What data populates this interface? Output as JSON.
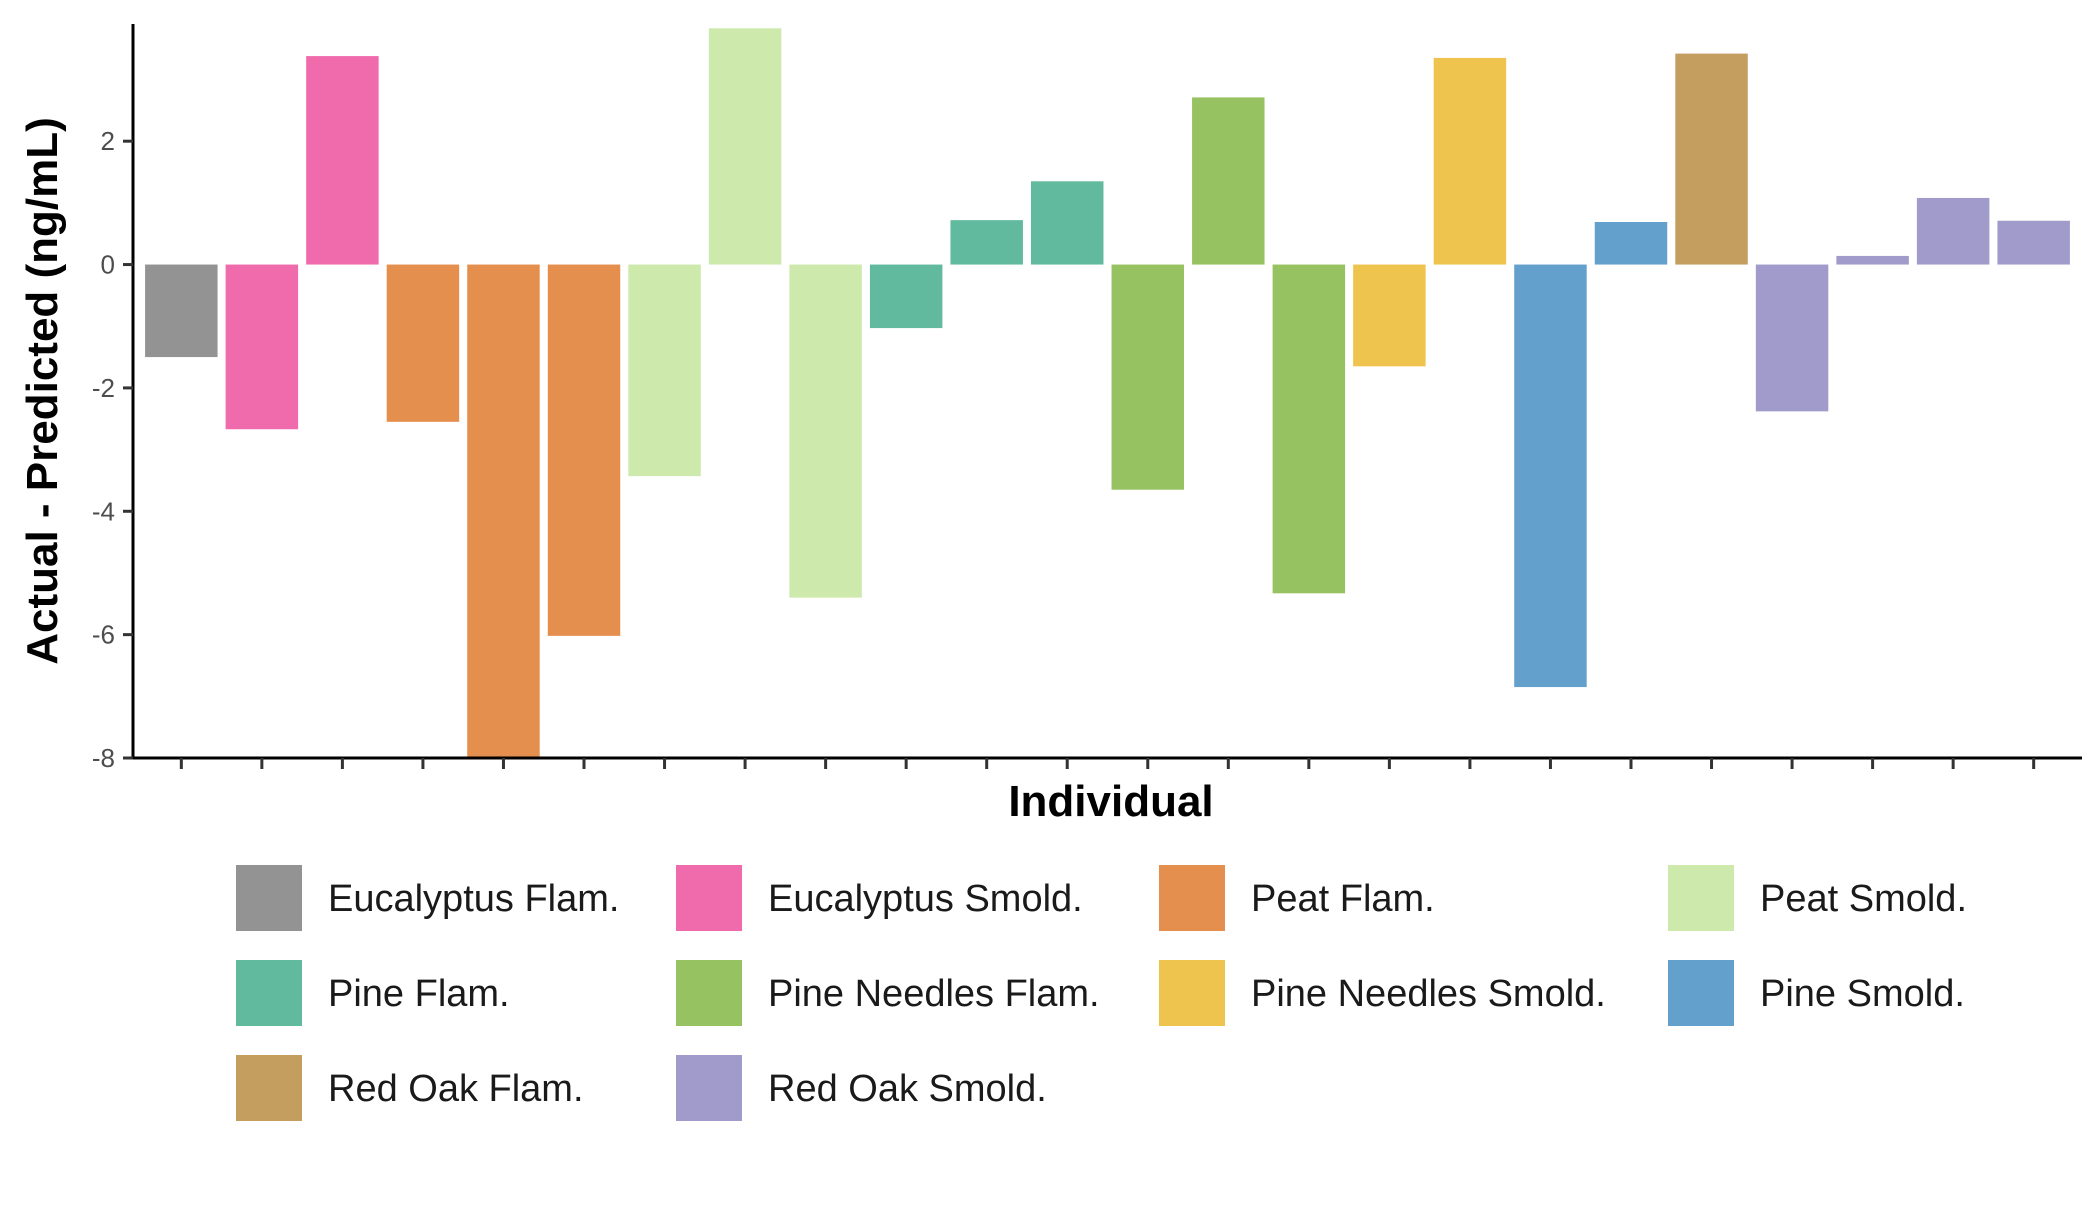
{
  "chart_data": {
    "type": "bar",
    "xlabel": "Individual",
    "ylabel": "Actual - Predicted (ng/mL)",
    "ylim": [
      -8,
      3.9
    ],
    "yticks": [
      2,
      0,
      -2,
      -4,
      -6,
      -8
    ],
    "ytick_labels": [
      "2",
      "0",
      "-2",
      "-4",
      "-6",
      "-8"
    ],
    "grid": false,
    "legend_position": "bottom",
    "series": [
      {
        "name": "Eucalyptus Flam.",
        "color": "#939393",
        "values": [
          -1.5
        ]
      },
      {
        "name": "Eucalyptus Smold.",
        "color": "#F06BAB",
        "values": [
          -2.67,
          3.38
        ]
      },
      {
        "name": "Peat Flam.",
        "color": "#E58F4E",
        "values": [
          -2.55,
          -8.0,
          -6.02
        ]
      },
      {
        "name": "Peat Smold.",
        "color": "#CDE9AC",
        "values": [
          -3.43,
          3.83,
          -5.4
        ]
      },
      {
        "name": "Pine Flam.",
        "color": "#61BA9D",
        "values": [
          -1.03,
          0.72,
          1.35
        ]
      },
      {
        "name": "Pine Needles Flam.",
        "color": "#96C261",
        "values": [
          -3.65,
          2.71,
          -5.33
        ]
      },
      {
        "name": "Pine Needles Smold.",
        "color": "#EEC44E",
        "values": [
          -1.65,
          3.35
        ]
      },
      {
        "name": "Pine Smold.",
        "color": "#63A0CB",
        "values": [
          -6.85,
          0.69
        ]
      },
      {
        "name": "Red Oak Flam.",
        "color": "#C49E5F",
        "values": [
          3.42
        ]
      },
      {
        "name": "Red Oak Smold.",
        "color": "#A09BCB",
        "values": [
          -2.38,
          0.14,
          1.08,
          0.71
        ]
      }
    ]
  }
}
